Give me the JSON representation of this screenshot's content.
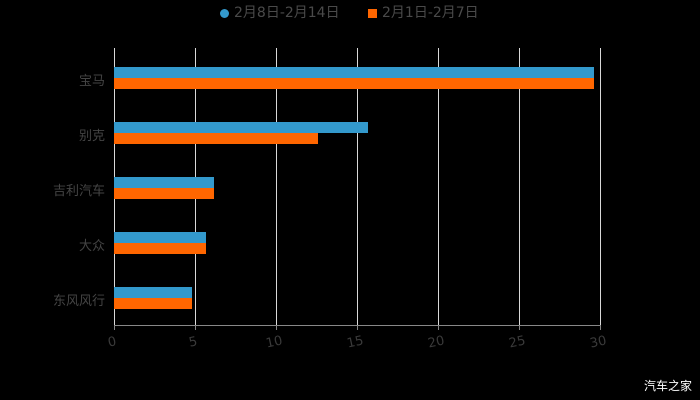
{
  "chart_data": {
    "type": "bar",
    "orientation": "horizontal",
    "title": "",
    "xlabel": "",
    "ylabel": "",
    "categories": [
      "宝马",
      "别克",
      "吉利汽车",
      "大众",
      "东风风行"
    ],
    "series": [
      {
        "name": "2月8日-2月14日",
        "color": "#3399cc",
        "marker": "circle",
        "values": [
          29.6,
          15.7,
          6.2,
          5.7,
          4.8
        ]
      },
      {
        "name": "2月1日-2月7日",
        "color": "#ff6600",
        "marker": "square",
        "values": [
          29.6,
          12.6,
          6.2,
          5.7,
          4.8
        ]
      }
    ],
    "xlim": [
      0,
      30
    ],
    "xticks": [
      "0",
      "5",
      "10",
      "15",
      "20",
      "25",
      "30"
    ],
    "grid": true,
    "legend_position": "top"
  },
  "legend": {
    "series1": "2月8日-2月14日",
    "series2": "2月1日-2月7日"
  },
  "watermark": "汽车之家"
}
